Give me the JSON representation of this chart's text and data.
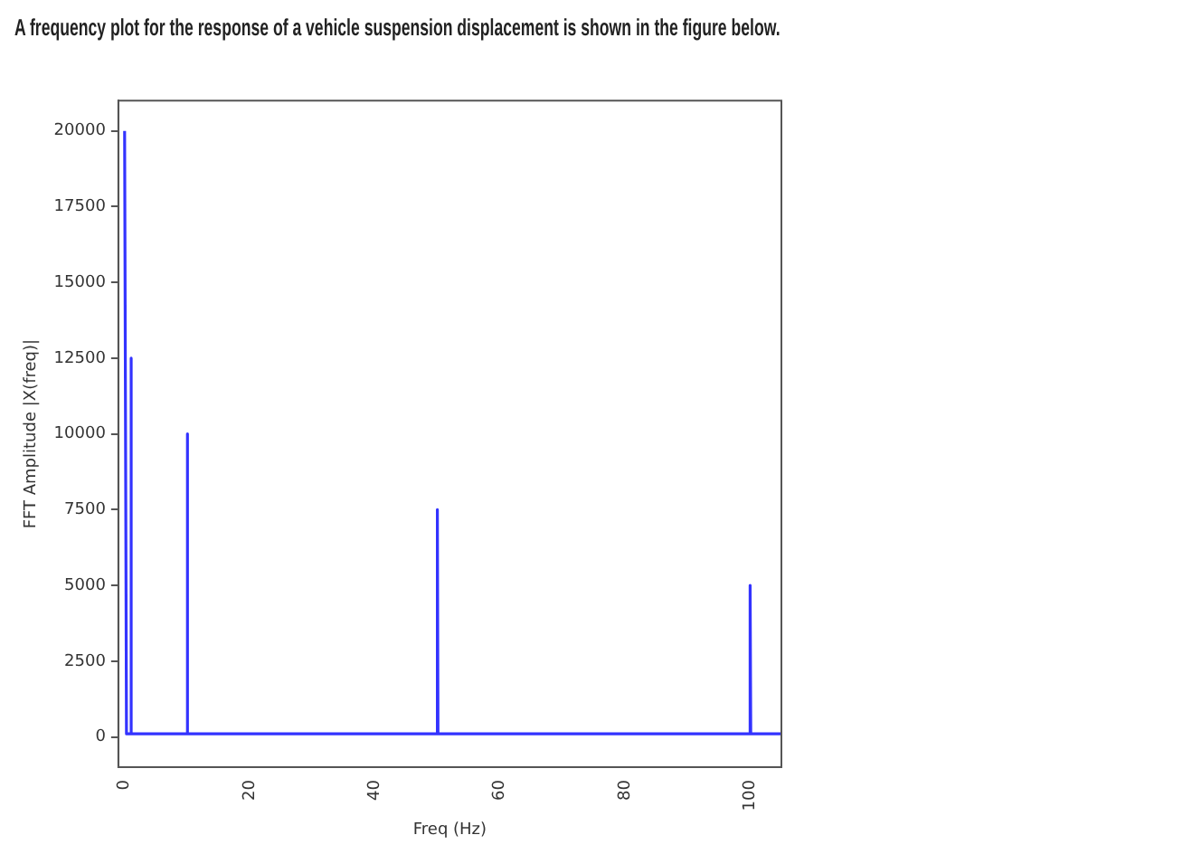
{
  "chart_data": {
    "type": "line",
    "title": "A frequency plot for the response of a vehicle suspension displacement is shown in the figure below.",
    "xlabel": "Freq (Hz)",
    "ylabel": "FFT Amplitude |X(freq)|",
    "x": [
      0,
      0.3,
      0.9,
      1,
      1.1,
      9.9,
      10,
      10.1,
      49.9,
      50,
      50.1,
      99.9,
      100,
      100.1,
      105
    ],
    "series": [
      {
        "color": "#3333ff",
        "values": [
          20000,
          100,
          100,
          12500,
          100,
          100,
          10000,
          100,
          100,
          7500,
          100,
          100,
          5000,
          100,
          100
        ]
      }
    ],
    "xlim": [
      -1,
      105
    ],
    "xticks": [
      0,
      20,
      40,
      60,
      80,
      100
    ],
    "ylim": [
      -1000,
      21000
    ],
    "yticks": [
      0,
      2500,
      5000,
      7500,
      10000,
      12500,
      15000,
      17500,
      20000
    ],
    "grid": false,
    "legend": false,
    "marker": "none",
    "line_style": "solid"
  }
}
